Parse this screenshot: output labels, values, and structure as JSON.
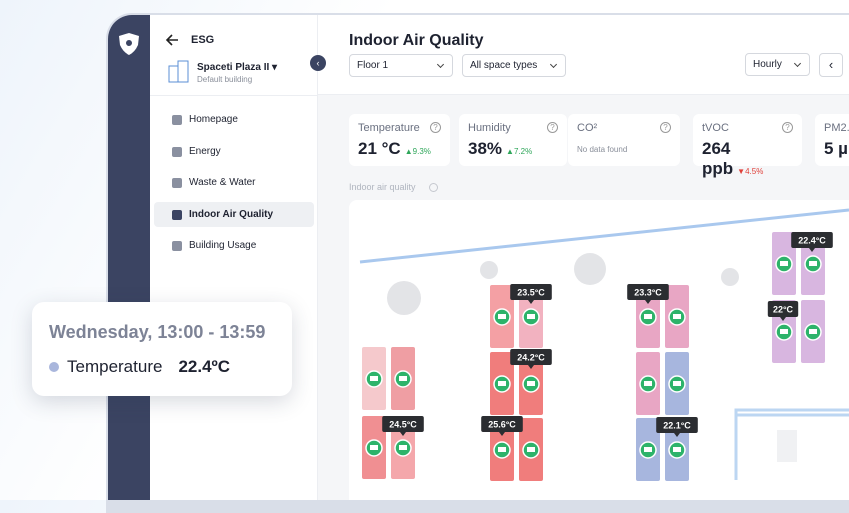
{
  "sidebar": {
    "back_title": "ESG",
    "building": {
      "name": "Spaceti Plaza II",
      "subtitle": "Default building"
    },
    "menu": [
      "Homepage",
      "Energy",
      "Waste & Water",
      "Indoor Air Quality",
      "Building Usage"
    ],
    "active": "Indoor Air Quality"
  },
  "header": {
    "title": "Indoor Air Quality",
    "filters": [
      "Floor 1",
      "All space types"
    ],
    "interval": "Hourly"
  },
  "cards": [
    {
      "label": "Temperature",
      "value": "21 °C",
      "change": "9.3%",
      "trend": "up"
    },
    {
      "label": "Humidity",
      "value": "38%",
      "change": "7.2%",
      "trend": "up"
    },
    {
      "label": "CO²",
      "note": "No data found"
    },
    {
      "label": "tVOC",
      "value": "264 ppb",
      "change": "4.5%",
      "trend": "down"
    },
    {
      "label": "PM2.",
      "value": "5 µ"
    }
  ],
  "section_label": "Indoor air quality",
  "floorplan": {
    "tooltips": [
      "23.5°C",
      "24.2°C",
      "24.5°C",
      "25.6°C",
      "23.3°C",
      "22.1°C",
      "22.4°C",
      "22°C"
    ]
  },
  "popup": {
    "time": "Wednesday, 13:00 - 13:59",
    "metric": "Temperature",
    "value": "22.4ºC"
  }
}
